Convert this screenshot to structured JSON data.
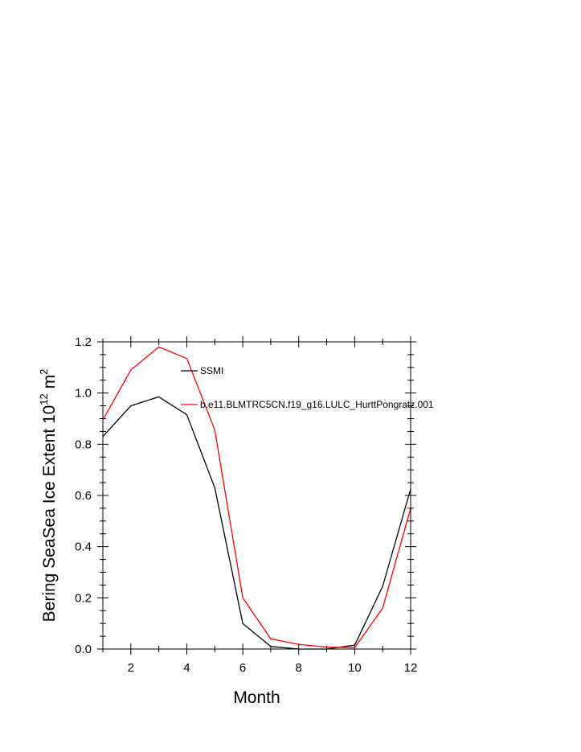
{
  "chart_data": {
    "type": "line",
    "title": "",
    "xlabel": "Month",
    "ylabel": {
      "prefix": "Bering SeaSea Ice Extent 10",
      "exponent": "12",
      "unit": " m",
      "unit_exponent": "2"
    },
    "xlim": [
      1,
      12
    ],
    "ylim": [
      0.0,
      1.2
    ],
    "xticks": [
      2,
      4,
      6,
      8,
      10,
      12
    ],
    "yticks": [
      "0.0",
      "0.2",
      "0.4",
      "0.6",
      "0.8",
      "1.0",
      "1.2"
    ],
    "grid": false,
    "legend_position": "inside-top",
    "x": [
      1,
      2,
      3,
      4,
      5,
      6,
      7,
      8,
      9,
      10,
      11,
      12
    ],
    "series": [
      {
        "name": "SSMI",
        "color": "#000000",
        "values": [
          0.83,
          0.95,
          0.985,
          0.915,
          0.63,
          0.1,
          0.01,
          0.0,
          0.0,
          0.015,
          0.245,
          0.625
        ]
      },
      {
        "name": "b.e11.BLMTRC5CN.f19_g16.LULC_HurttPongratz.001",
        "color": "#ff0000",
        "values": [
          0.895,
          1.09,
          1.18,
          1.135,
          0.855,
          0.2,
          0.04,
          0.018,
          0.008,
          0.005,
          0.16,
          0.55
        ]
      }
    ]
  }
}
